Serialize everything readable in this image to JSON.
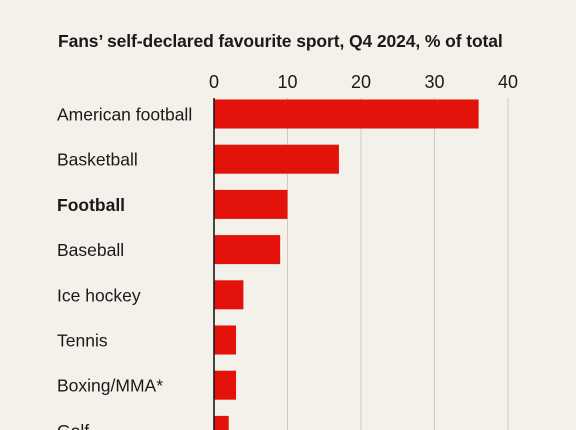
{
  "chart_data": {
    "type": "bar",
    "orientation": "horizontal",
    "title": "Fans’ self-declared favourite sport, Q4 2024, % of total",
    "xlabel": "",
    "ylabel": "",
    "xlim": [
      0,
      40
    ],
    "xticks": [
      0,
      10,
      20,
      30,
      40
    ],
    "grid": true,
    "categories": [
      "American football",
      "Basketball",
      "Football",
      "Baseball",
      "Ice hockey",
      "Tennis",
      "Boxing/MMA*",
      "Golf"
    ],
    "values": [
      36,
      17,
      10,
      9,
      4,
      3,
      3,
      2
    ],
    "highlight_category": "Football",
    "colors": {
      "bar": "#e3120b",
      "grid": "#cfcbc0",
      "axis": "#1a1a1a",
      "background": "#f3f1ea"
    }
  }
}
